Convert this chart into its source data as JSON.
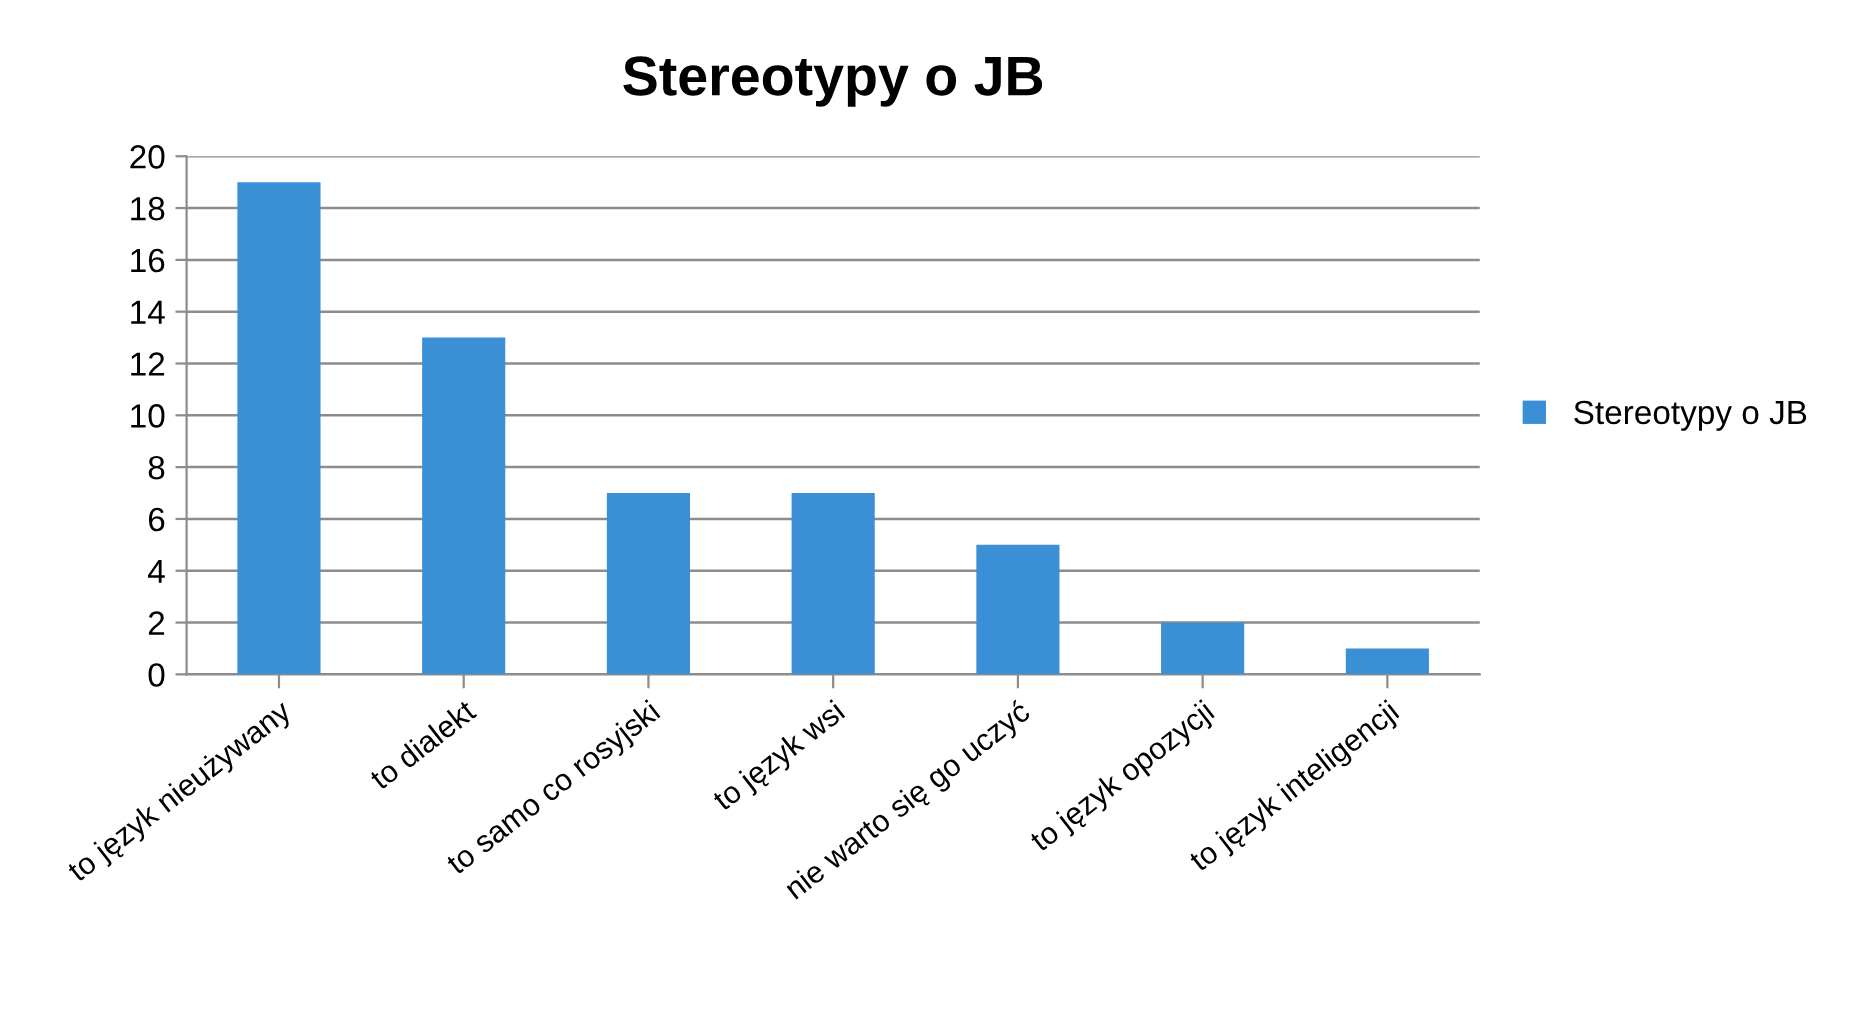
{
  "chart_data": {
    "type": "bar",
    "title": "Stereotypy o JB",
    "categories": [
      "to język nieużywany",
      "to dialekt",
      "to samo co rosyjski",
      "to język wsi",
      "nie warto się go uczyć",
      "to język opozycji",
      "to język inteligencji"
    ],
    "series": [
      {
        "name": "Stereotypy o JB",
        "color": "#3a8fd5",
        "values": [
          19,
          13,
          7,
          7,
          5,
          2,
          1
        ]
      }
    ],
    "ylim": [
      0,
      20
    ],
    "yticks": [
      0,
      2,
      4,
      6,
      8,
      10,
      12,
      14,
      16,
      18,
      20
    ],
    "grid": "y",
    "legend": "right"
  }
}
